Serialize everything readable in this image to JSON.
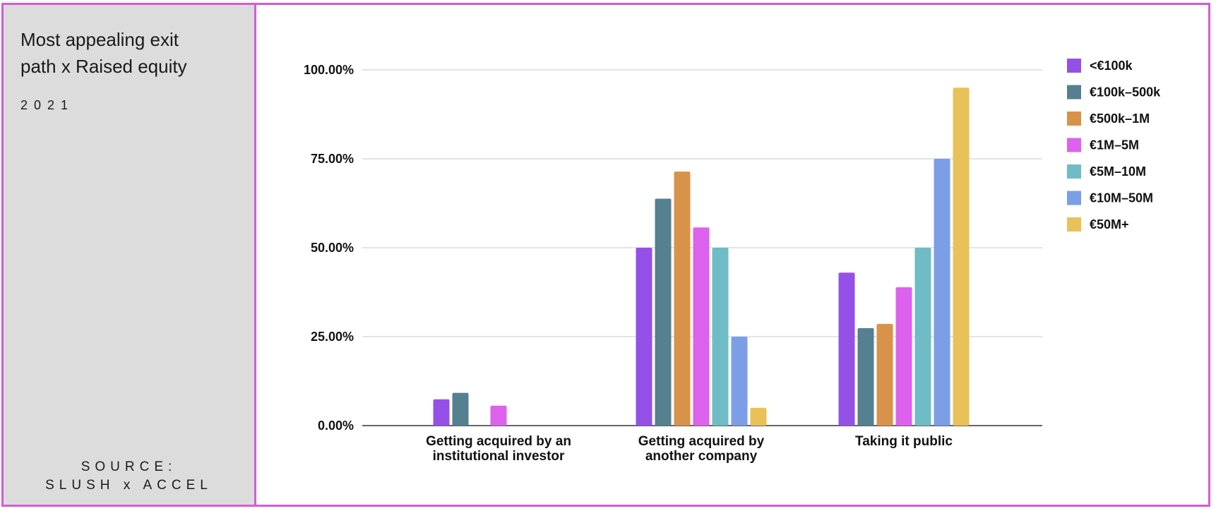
{
  "header": {
    "title": "Most appealing exit\npath x Raised equity",
    "year": "2021",
    "source": "SOURCE:\nSLUSH x ACCEL"
  },
  "colors": {
    "frame": "#d35cd6",
    "sidebar_bg": "#dcdcdc"
  },
  "chart_data": {
    "type": "bar",
    "title": "",
    "xlabel": "",
    "ylabel": "",
    "ylim": [
      0,
      100
    ],
    "yticks": [
      "0.00%",
      "25.00%",
      "50.00%",
      "75.00%",
      "100.00%"
    ],
    "grid": true,
    "legend_position": "right",
    "categories": [
      "Getting acquired by an\ninstitutional investor",
      "Getting acquired by\nanother company",
      "Taking it public"
    ],
    "series": [
      {
        "name": "<€100k",
        "color": "#9550e8",
        "values": [
          7.4,
          50,
          43
        ]
      },
      {
        "name": "€100k–500k",
        "color": "#548090",
        "values": [
          9.2,
          63.8,
          27.4
        ]
      },
      {
        "name": "€500k–1M",
        "color": "#d8934a",
        "values": [
          0,
          71.4,
          28.6
        ]
      },
      {
        "name": "€1M–5M",
        "color": "#dc62ee",
        "values": [
          5.6,
          55.7,
          38.9
        ]
      },
      {
        "name": "€5M–10M",
        "color": "#6fbcc6",
        "values": [
          0,
          50,
          50
        ]
      },
      {
        "name": "€10M–50M",
        "color": "#7b9ee6",
        "values": [
          0,
          25,
          75
        ]
      },
      {
        "name": "€50M+",
        "color": "#e8c158",
        "values": [
          0,
          5,
          95
        ]
      }
    ]
  }
}
